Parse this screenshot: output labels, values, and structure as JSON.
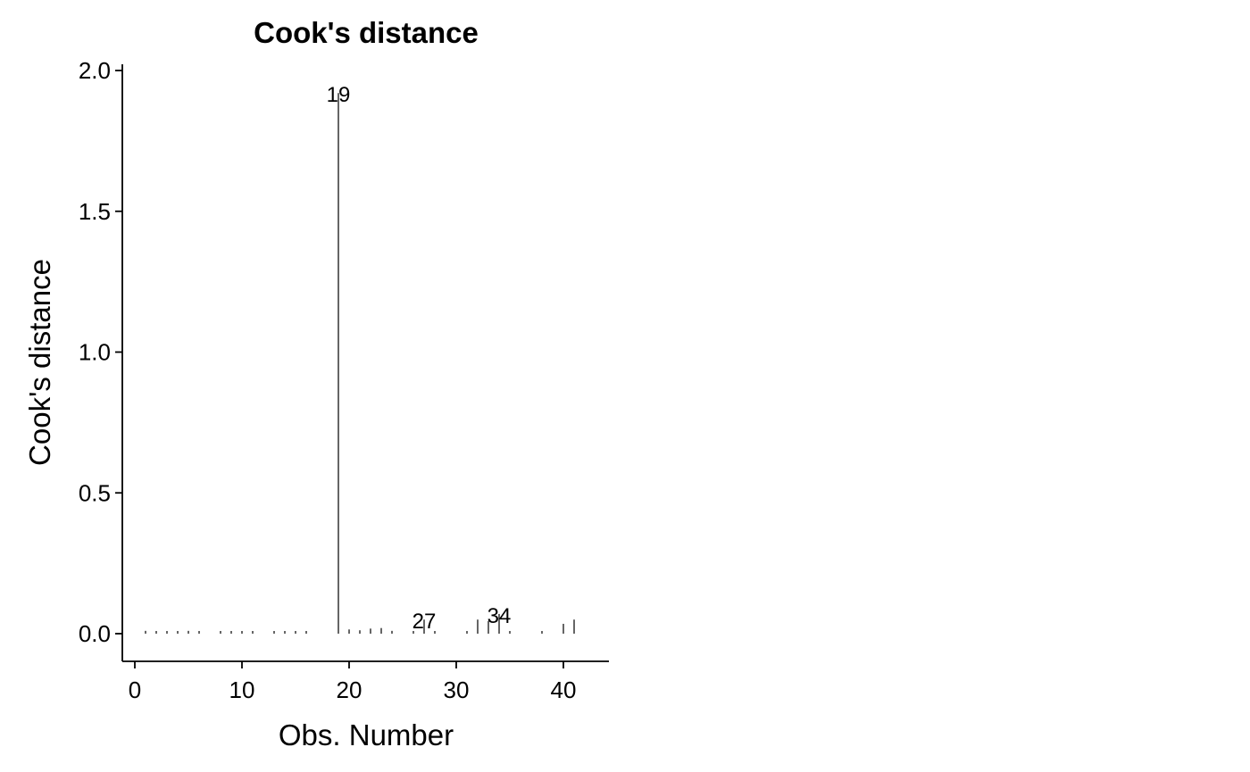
{
  "chart_data": {
    "type": "bar",
    "subtype": "needle",
    "title": "Cook's distance",
    "xlabel": "Obs. Number",
    "ylabel": "Cook's distance",
    "xlim": [
      -1,
      44
    ],
    "ylim": [
      -0.1,
      2.03
    ],
    "xticks": [
      0,
      10,
      20,
      30,
      40
    ],
    "xtick_labels": [
      "0",
      "10",
      "20",
      "30",
      "40"
    ],
    "yticks": [
      0.0,
      0.5,
      1.0,
      1.5,
      2.0
    ],
    "ytick_labels": [
      "0.0",
      "0.5",
      "1.0",
      "1.5",
      "2.0"
    ],
    "x": [
      1,
      2,
      3,
      4,
      5,
      6,
      7,
      8,
      9,
      10,
      11,
      12,
      13,
      14,
      15,
      16,
      17,
      18,
      19,
      20,
      21,
      22,
      23,
      24,
      25,
      26,
      27,
      28,
      29,
      30,
      31,
      32,
      33,
      34,
      35,
      36,
      37,
      38,
      39,
      40,
      41
    ],
    "values": [
      0.01,
      0.005,
      0.005,
      0.008,
      0.01,
      0.007,
      0.0,
      0.005,
      0.004,
      0.004,
      0.003,
      0.0,
      0.008,
      0.006,
      0.004,
      0.003,
      0.0,
      0.0,
      1.92,
      0.015,
      0.012,
      0.018,
      0.02,
      0.01,
      0.0,
      0.004,
      0.05,
      0.002,
      0.0,
      0.0,
      0.003,
      0.05,
      0.045,
      0.07,
      0.005,
      0.0,
      0.0,
      0.002,
      0.0,
      0.035,
      0.05
    ],
    "annotations": [
      {
        "x": 19,
        "y": 1.92,
        "text": "19"
      },
      {
        "x": 27,
        "y": 0.05,
        "text": "27"
      },
      {
        "x": 34,
        "y": 0.07,
        "text": "34"
      }
    ]
  }
}
